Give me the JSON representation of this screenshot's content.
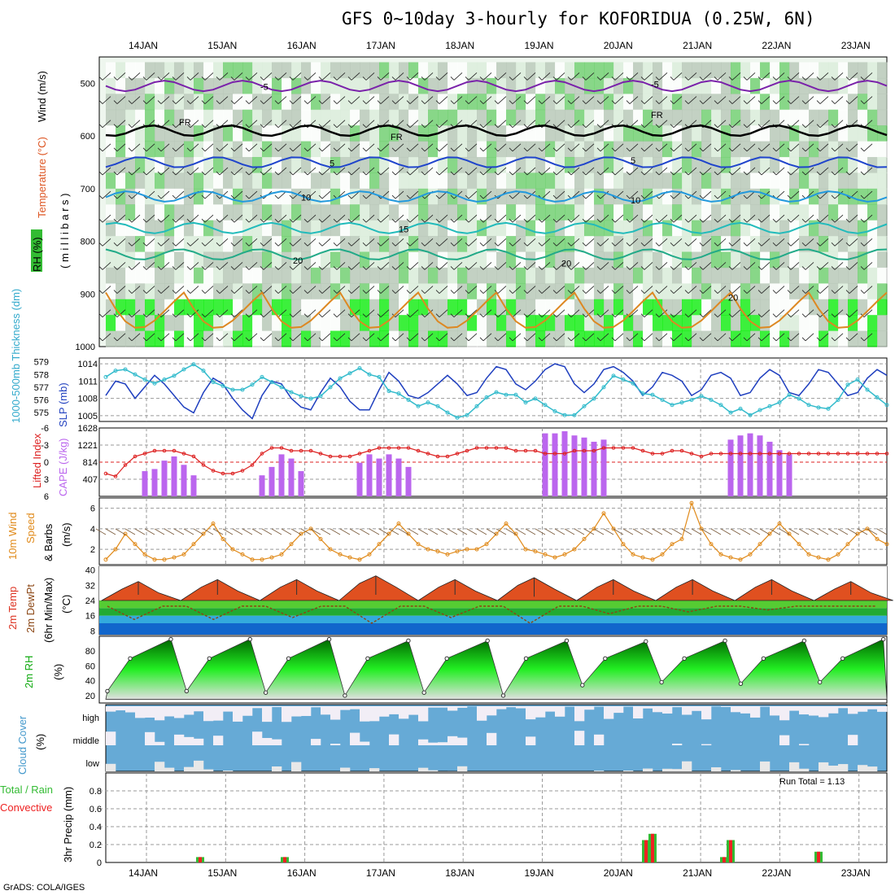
{
  "title": "GFS 0~10day 3-hourly for KOFORIDUA (0.25W, 6N)",
  "credit": "GrADS: COLA/IGES",
  "colors": {
    "rh_light": "#d9ecd9",
    "rh_mid": "#b4c4b4",
    "rh_green": "#66cc66",
    "rh_bright": "#00ee00",
    "slp": "#1f3fbf",
    "thickness": "#33bbcc",
    "lifted_index": "#dd2222",
    "cape": "#bb66ee",
    "wind": "#e08a1a",
    "dewpt": "#8b4513",
    "rh2m": "#11aa11",
    "cloud": "#66aad6",
    "precip_total": "#33bb33",
    "precip_conv": "#ee2222"
  },
  "date_labels": [
    "14JAN",
    "15JAN",
    "16JAN",
    "17JAN",
    "18JAN",
    "19JAN",
    "20JAN",
    "21JAN",
    "22JAN",
    "23JAN"
  ],
  "panels": {
    "upper": {
      "y_label_wind": "Wind (m/s)",
      "y_label_temp": "Temperature (°C)",
      "y_label_rh": "RH (%)",
      "y_label_mb": "( m i l l i b a r s )",
      "ticks": [
        "500",
        "600",
        "700",
        "800",
        "900",
        "1000"
      ],
      "contour_labels": [
        "-5",
        "-5",
        "FR",
        "FR",
        "FR",
        "5",
        "5",
        "10",
        "10",
        "15",
        "20",
        "20",
        "20"
      ]
    },
    "slp": {
      "y_label_thick": "1000-500mb Thickness (dm)",
      "y_label_slp": "SLP (mb)",
      "ticks_left": [
        "579",
        "578",
        "577",
        "576",
        "575"
      ],
      "ticks_right": [
        "1014",
        "1011",
        "1008",
        "1005"
      ]
    },
    "cape": {
      "y_label_li": "Lifted Index",
      "y_label_cape": "CAPE (J/kg)",
      "ticks_left": [
        "-6",
        "-3",
        "0",
        "3",
        "6"
      ],
      "ticks_right": [
        "1628",
        "1221",
        "814",
        "407"
      ]
    },
    "wind10": {
      "y_label_1": "10m Wind",
      "y_label_2": "Speed",
      "y_label_3": "& Barbs",
      "y_label_4": "(m/s)",
      "ticks": [
        "6",
        "4",
        "2"
      ]
    },
    "temp2m": {
      "y_label_1": "2m Temp",
      "y_label_2": "2m DewPt",
      "y_label_3": "(6hr Min/Max)",
      "y_label_4": "(°C)",
      "ticks": [
        "40",
        "32",
        "24",
        "16",
        "8"
      ]
    },
    "rh2m": {
      "y_label_1": "2m RH",
      "y_label_2": "(%)",
      "ticks": [
        "80",
        "60",
        "40",
        "20"
      ]
    },
    "cloud": {
      "y_label_1": "Cloud Cover",
      "y_label_2": "(%)",
      "levels": [
        "high",
        "middle",
        "low"
      ]
    },
    "precip": {
      "y_label_1": "3hr Precip (mm)",
      "y_label_2": "Total / Rain",
      "y_label_3": "Convective",
      "run_total": "Run Total = 1.13",
      "ticks": [
        "0.8",
        "0.6",
        "0.4",
        "0.2",
        "0"
      ]
    }
  },
  "chart_data": [
    {
      "type": "line",
      "name": "pressure-height cross section",
      "ylabel": "millibars",
      "ylim": [
        1000,
        450
      ],
      "isotherm_levels_c": [
        -5,
        0,
        5,
        10,
        15,
        20,
        25
      ],
      "isotherm_mean_pressure_mb": [
        505,
        590,
        650,
        715,
        775,
        825,
        900
      ]
    },
    {
      "type": "line",
      "name": "SLP and 1000-500mb Thickness",
      "x_hours": [
        0,
        3,
        6,
        9,
        12,
        15,
        18,
        21,
        24,
        27,
        30,
        33,
        36,
        39,
        42,
        45,
        48,
        51,
        54,
        57,
        60,
        63,
        66,
        69,
        72,
        75,
        78,
        81,
        84,
        87,
        90,
        93,
        96,
        99,
        102,
        105,
        108,
        111,
        114,
        117,
        120,
        123,
        126,
        129,
        132,
        135,
        138,
        141,
        144,
        147,
        150,
        153,
        156,
        159,
        162,
        165,
        168,
        171,
        174,
        177,
        180,
        183,
        186,
        189,
        192,
        195,
        198,
        201,
        204,
        207,
        210,
        213,
        216,
        219,
        222,
        225,
        228,
        231,
        234,
        237,
        240
      ],
      "series": [
        {
          "name": "SLP (mb)",
          "values": [
            1008.5,
            1011.0,
            1010.5,
            1008.0,
            1010.0,
            1012.0,
            1010.5,
            1008.5,
            1006.5,
            1005.5,
            1009.0,
            1011.5,
            1010.5,
            1008.0,
            1006.0,
            1004.5,
            1008.5,
            1011.0,
            1010.5,
            1008.0,
            1006.5,
            1006.0,
            1009.0,
            1011.5,
            1010.0,
            1007.5,
            1006.0,
            1006.0,
            1009.5,
            1012.5,
            1011.0,
            1008.5,
            1008.0,
            1009.0,
            1010.5,
            1012.0,
            1010.5,
            1008.5,
            1009.0,
            1011.5,
            1013.5,
            1013.0,
            1010.5,
            1009.5,
            1011.0,
            1013.0,
            1014.0,
            1013.5,
            1010.5,
            1009.0,
            1010.5,
            1013.0,
            1013.5,
            1012.5,
            1011.0,
            1008.5,
            1010.0,
            1012.5,
            1012.0,
            1011.0,
            1008.5,
            1009.5,
            1012.0,
            1012.5,
            1011.5,
            1008.5,
            1009.0,
            1011.5,
            1013.0,
            1012.0,
            1009.0,
            1008.5,
            1010.5,
            1013.0,
            1012.5,
            1010.5,
            1008.5,
            1009.0,
            1011.5,
            1013.0,
            1012.0
          ]
        },
        {
          "name": "Thickness (dm)",
          "values": [
            577.8,
            578.3,
            578.4,
            578.0,
            577.6,
            577.3,
            577.6,
            577.9,
            578.4,
            578.8,
            578.3,
            577.4,
            577.1,
            576.8,
            576.8,
            577.2,
            577.8,
            577.4,
            577.0,
            576.6,
            576.3,
            576.1,
            576.3,
            577.0,
            577.7,
            578.1,
            578.5,
            578.0,
            577.8,
            576.7,
            576.5,
            576.0,
            575.5,
            575.8,
            575.5,
            575.0,
            574.6,
            574.8,
            575.5,
            576.2,
            576.6,
            576.4,
            576.4,
            575.8,
            576.1,
            575.6,
            575.1,
            574.8,
            574.8,
            575.5,
            576.1,
            577.0,
            577.9,
            577.6,
            577.3,
            576.5,
            576.4,
            576.0,
            575.6,
            575.8,
            576.0,
            576.3,
            576.0,
            575.6,
            575.0,
            575.3,
            574.8,
            575.2,
            575.5,
            575.8,
            576.4,
            576.1,
            575.6,
            575.4,
            575.3,
            576.0,
            577.2,
            577.6,
            576.8,
            576.2,
            575.6
          ]
        }
      ]
    },
    {
      "type": "bar",
      "name": "CAPE and Lifted Index",
      "series": [
        {
          "name": "CAPE (J/kg)",
          "values": [
            0,
            0,
            0,
            0,
            600,
            650,
            850,
            950,
            750,
            500,
            0,
            0,
            0,
            0,
            0,
            0,
            500,
            700,
            1000,
            900,
            600,
            0,
            0,
            0,
            0,
            0,
            800,
            1000,
            900,
            1000,
            900,
            700,
            0,
            0,
            0,
            0,
            0,
            0,
            0,
            0,
            0,
            0,
            0,
            0,
            0,
            1500,
            1500,
            1550,
            1450,
            1400,
            1300,
            1350,
            0,
            0,
            0,
            0,
            0,
            0,
            0,
            0,
            0,
            0,
            0,
            0,
            1350,
            1450,
            1500,
            1450,
            1300,
            1100,
            1000,
            0,
            0,
            0,
            0,
            0,
            0,
            0,
            0,
            0,
            0
          ]
        },
        {
          "name": "Lifted Index",
          "values": [
            2.0,
            2.5,
            0.5,
            -1.0,
            -1.5,
            -2.0,
            -2.0,
            -2.0,
            -1.5,
            -1.0,
            0.5,
            1.5,
            2.0,
            2.0,
            1.5,
            0.5,
            -1.5,
            -2.5,
            -2.5,
            -2.0,
            -2.0,
            -2.0,
            -1.5,
            -1.0,
            -1.0,
            -1.0,
            -1.5,
            -2.0,
            -2.5,
            -2.5,
            -2.5,
            -2.5,
            -2.0,
            -1.5,
            -1.0,
            -1.0,
            -1.5,
            -2.0,
            -2.5,
            -2.5,
            -2.5,
            -2.5,
            -2.0,
            -2.0,
            -2.0,
            -1.5,
            -1.5,
            -1.5,
            -2.0,
            -2.0,
            -2.0,
            -2.5,
            -2.5,
            -2.5,
            -2.5,
            -2.0,
            -1.5,
            -1.5,
            -2.0,
            -2.0,
            -1.5,
            -1.0,
            -1.5,
            -1.5,
            -1.5,
            -1.5,
            -1.5,
            -1.5,
            -1.5,
            -1.5,
            -1.5,
            -1.5,
            -1.5,
            -1.5,
            -1.5,
            -1.5,
            -1.5,
            -1.5,
            -1.5,
            -1.5,
            -1.5
          ]
        }
      ]
    },
    {
      "type": "line",
      "name": "10m wind speed",
      "ylabel": "m/s",
      "series": [
        {
          "name": "10m Wind Speed",
          "values": [
            1.0,
            2.0,
            3.5,
            2.5,
            1.5,
            1.0,
            1.0,
            1.2,
            1.5,
            2.5,
            3.5,
            4.5,
            3.0,
            2.0,
            1.5,
            1.0,
            1.0,
            1.2,
            1.5,
            2.5,
            3.5,
            4.0,
            3.0,
            2.0,
            1.5,
            1.2,
            1.0,
            1.5,
            2.5,
            3.5,
            4.5,
            3.5,
            2.5,
            2.0,
            1.8,
            1.5,
            1.8,
            2.0,
            2.0,
            2.5,
            3.5,
            4.5,
            3.5,
            2.0,
            1.8,
            1.5,
            1.2,
            1.5,
            2.0,
            3.0,
            4.0,
            5.5,
            4.0,
            2.5,
            1.5,
            1.2,
            1.0,
            1.5,
            2.5,
            3.0,
            6.5,
            4.0,
            2.5,
            1.5,
            1.2,
            1.0,
            1.5,
            2.5,
            3.5,
            4.5,
            3.5,
            2.5,
            1.5,
            1.2,
            1.0,
            1.5,
            2.5,
            3.5,
            4.0,
            3.0,
            2.5
          ]
        }
      ]
    },
    {
      "type": "line",
      "name": "2m temperature and dew point",
      "ylabel": "°C",
      "ylim": [
        8,
        40
      ],
      "daily_max_temp": [
        34,
        35,
        35,
        37,
        35,
        36,
        35,
        35,
        35,
        34
      ],
      "daily_min_temp": [
        23,
        23,
        23,
        23,
        23,
        22,
        23,
        23,
        23,
        23
      ],
      "daily_min_dewpt": [
        14,
        14,
        15,
        12,
        15,
        12,
        17,
        18,
        19,
        21
      ],
      "mean_dewpt": 21
    },
    {
      "type": "area",
      "name": "2m relative humidity",
      "ylabel": "%",
      "daily_max_rh": [
        96,
        96,
        96,
        94,
        94,
        94,
        93,
        94,
        94,
        96
      ],
      "daily_min_rh": [
        26,
        26,
        24,
        20,
        24,
        20,
        34,
        38,
        36,
        38
      ]
    },
    {
      "type": "bar",
      "name": "precipitation",
      "ylabel": "3hr Precip (mm)",
      "ylim": [
        0,
        1.0
      ],
      "series": [
        {
          "name": "Total / Rain",
          "events": [
            [
              29,
              0.06
            ],
            [
              55,
              0.06
            ],
            [
              166,
              0.25
            ],
            [
              168,
              0.32
            ],
            [
              190,
              0.06
            ],
            [
              192,
              0.25
            ],
            [
              219,
              0.12
            ]
          ]
        },
        {
          "name": "Convective",
          "events": [
            [
              29,
              0.06
            ],
            [
              55,
              0.06
            ],
            [
              166,
              0.25
            ],
            [
              168,
              0.32
            ],
            [
              190,
              0.06
            ],
            [
              192,
              0.25
            ],
            [
              219,
              0.12
            ]
          ]
        }
      ],
      "run_total": 1.13
    }
  ]
}
